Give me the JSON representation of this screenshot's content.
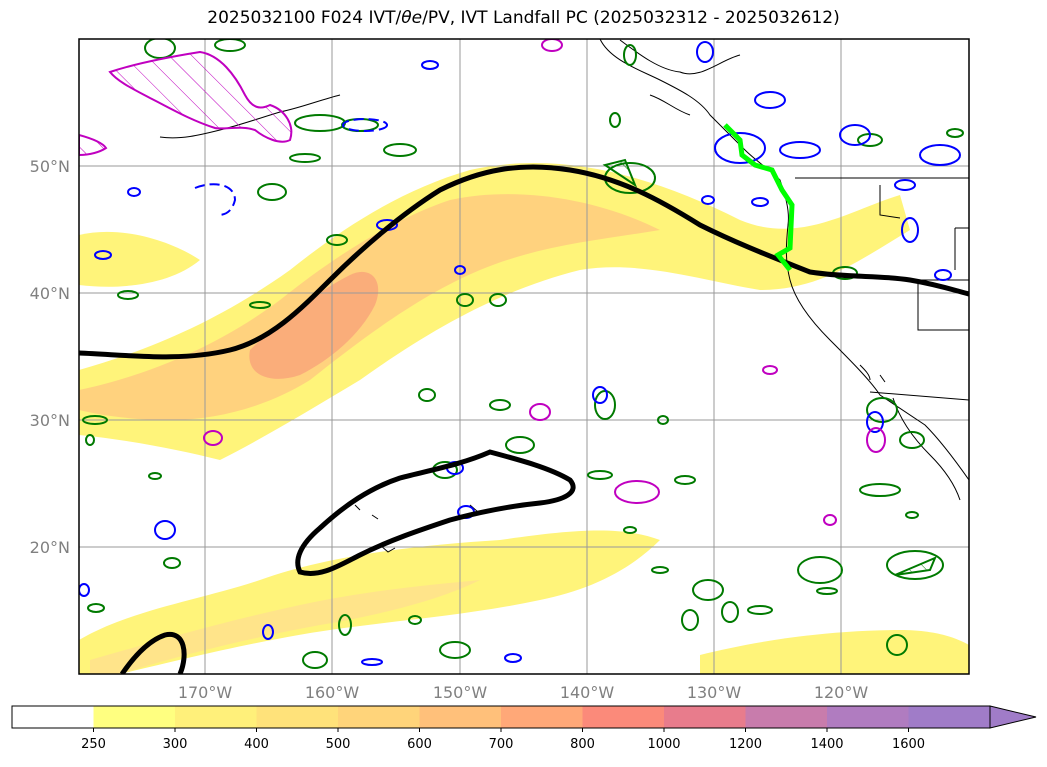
{
  "title_prefix": "2025032100 F024 IVT/",
  "title_symbol": "θe",
  "title_suffix": "/PV, IVT Landfall PC (2025032312 - 2025032612)",
  "map": {
    "lat_labels": [
      "50°N",
      "40°N",
      "30°N",
      "20°N"
    ],
    "lon_labels": [
      "170°W",
      "160°W",
      "150°W",
      "140°W",
      "130°W",
      "120°W"
    ],
    "gridlines": true,
    "background": "#ffffff"
  },
  "colorbar": {
    "ticks": [
      "250",
      "300",
      "400",
      "500",
      "600",
      "700",
      "800",
      "1000",
      "1200",
      "1400",
      "1600"
    ],
    "colors": [
      "#ffffff",
      "#ffff80",
      "#fff07a",
      "#ffe27a",
      "#ffd47a",
      "#ffc07a",
      "#ffa878",
      "#fb8a7a",
      "#e87c8c",
      "#c87cac",
      "#b07cc0",
      "#a07cc8"
    ],
    "extend": "max"
  },
  "colors": {
    "ivt_light": "#fff47a",
    "ivt_mid": "#ffd27e",
    "ivt_high": "#f8a07a",
    "pv_contour": "#000000",
    "theta_e_positive": "#007a00",
    "theta_e_negative": "#0000ff",
    "magenta_contour": "#c000c0",
    "landfall_line": "#00ff00"
  }
}
